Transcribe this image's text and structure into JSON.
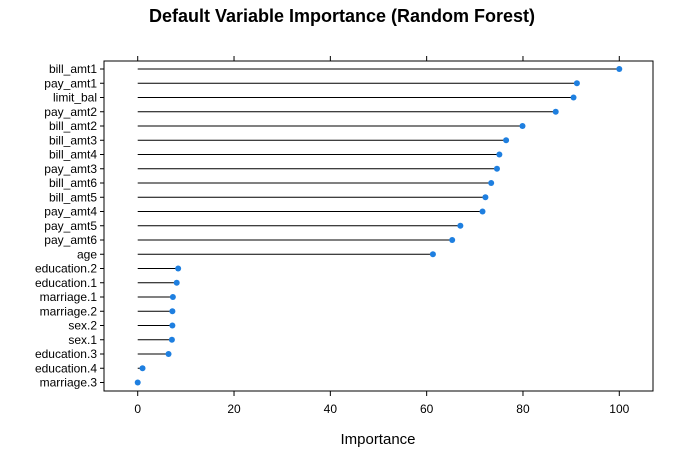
{
  "chart_data": {
    "type": "lollipop",
    "title": "Default Variable Importance (Random Forest)",
    "xlabel": "Importance",
    "ylabel": "",
    "xlim": [
      -7,
      107
    ],
    "xticks": [
      0,
      20,
      40,
      60,
      80,
      100
    ],
    "point_color": "#1e7fe0",
    "grid": false,
    "categories": [
      "bill_amt1",
      "pay_amt1",
      "limit_bal",
      "pay_amt2",
      "bill_amt2",
      "bill_amt3",
      "bill_amt4",
      "pay_amt3",
      "bill_amt6",
      "bill_amt5",
      "pay_amt4",
      "pay_amt5",
      "pay_amt6",
      "age",
      "education.2",
      "education.1",
      "marriage.1",
      "marriage.2",
      "sex.2",
      "sex.1",
      "education.3",
      "education.4",
      "marriage.3"
    ],
    "values": [
      100,
      91.2,
      90.5,
      86.8,
      79.9,
      76.5,
      75.1,
      74.6,
      73.4,
      72.2,
      71.6,
      67.0,
      65.3,
      61.3,
      8.4,
      8.1,
      7.3,
      7.2,
      7.2,
      7.1,
      6.4,
      1.0,
      0.0
    ]
  }
}
